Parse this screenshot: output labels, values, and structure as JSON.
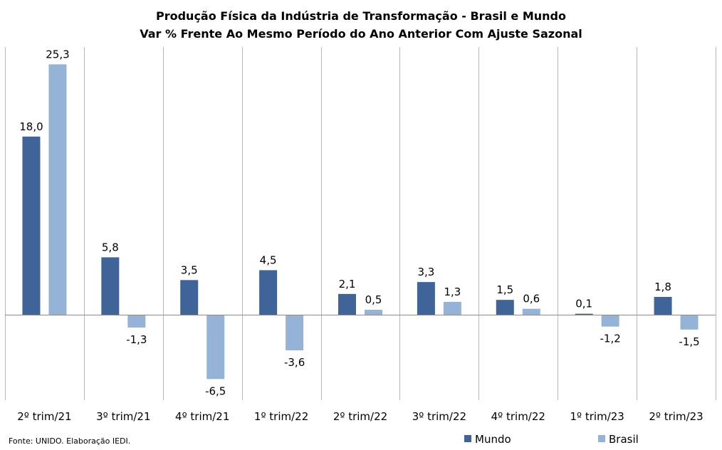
{
  "chart_data": {
    "type": "bar",
    "title": "Produção  Física da Indústria  de Transformação  - Brasil e Mundo",
    "subtitle": "Var % Frente Ao Mesmo Período do Ano Anterior Com Ajuste Sazonal",
    "categories": [
      "2º trim/21",
      "3º trim/21",
      "4º trim/21",
      "1º trim/22",
      "2º trim/22",
      "3º trim/22",
      "4º trim/22",
      "1º trim/23",
      "2º trim/23"
    ],
    "series": [
      {
        "name": "Mundo",
        "color": "#3E6499",
        "values": [
          18.0,
          5.8,
          3.5,
          4.5,
          2.1,
          3.3,
          1.5,
          0.1,
          1.8
        ],
        "labels": [
          "18,0",
          "5,8",
          "3,5",
          "4,5",
          "2,1",
          "3,3",
          "1,5",
          "0,1",
          "1,8"
        ]
      },
      {
        "name": "Brasil",
        "color": "#95B3D7",
        "values": [
          25.3,
          -1.3,
          -6.5,
          -3.6,
          0.5,
          1.3,
          0.6,
          -1.2,
          -1.5
        ],
        "labels": [
          "25,3",
          "-1,3",
          "-6,5",
          "-3,6",
          "0,5",
          "1,3",
          "0,6",
          "-1,2",
          "-1,5"
        ]
      }
    ],
    "xlabel": "",
    "ylabel": "",
    "ylim": [
      -9,
      27
    ],
    "grid": "vertical category separators",
    "legend": "bottom-right"
  },
  "source": "Fonte: UNIDO. Elaboração IEDI."
}
